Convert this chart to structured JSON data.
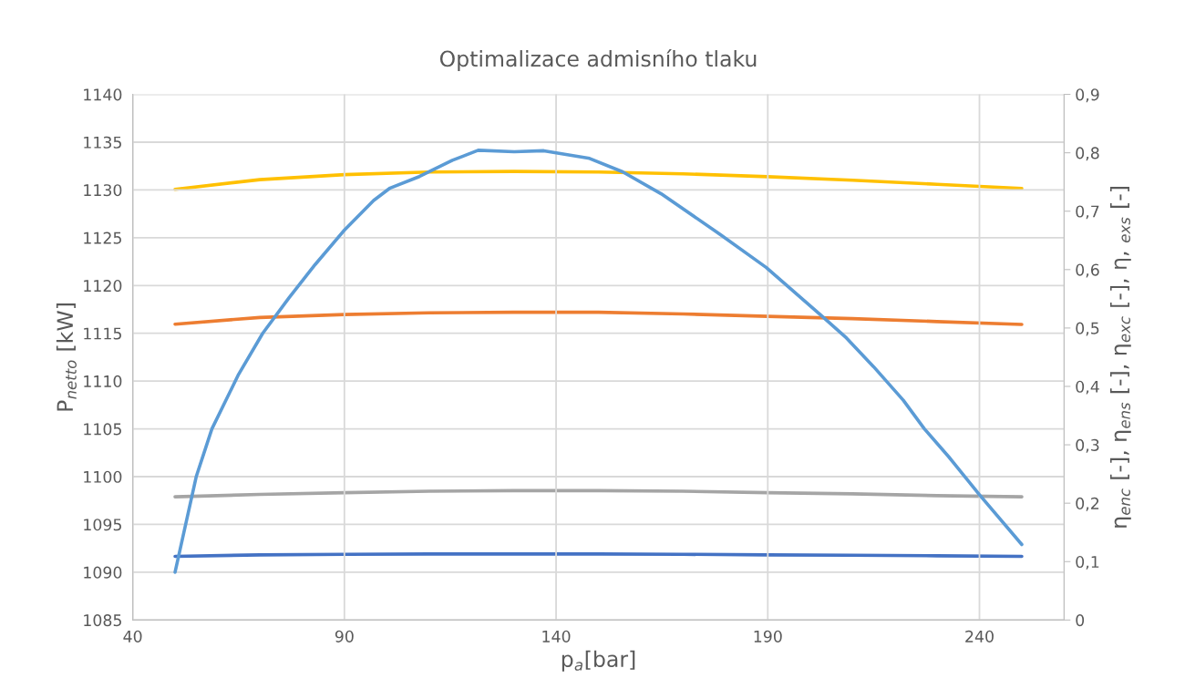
{
  "chart_data": {
    "type": "line",
    "title": "Optimalizace admisního tlaku",
    "xlabel": "p$_{a}$[bar]",
    "ylabel": "P$_{netto}$ [kW]",
    "y2label": "η$_{enc}$ [-], η$_{ens}$ [-], η$_{exc}$ [-], η, $_{exs}$ [-]",
    "xlim": [
      40,
      260
    ],
    "xticks": [
      40,
      90,
      140,
      190,
      240
    ],
    "ylim": [
      1085,
      1140
    ],
    "yticks": [
      1085,
      1090,
      1095,
      1100,
      1105,
      1110,
      1115,
      1120,
      1125,
      1130,
      1135,
      1140
    ],
    "y2lim": [
      0,
      0.9
    ],
    "y2ticks": [
      0,
      {
        "value": 0.1,
        "label": "0,1"
      },
      {
        "value": 0.2,
        "label": "0,2"
      },
      {
        "value": 0.3,
        "label": "0,3"
      },
      {
        "value": 0.4,
        "label": "0,4"
      },
      {
        "value": 0.5,
        "label": "0,5"
      },
      {
        "value": 0.6,
        "label": "0,6"
      },
      {
        "value": 0.7,
        "label": "0,7"
      },
      {
        "value": 0.8,
        "label": "0,8"
      },
      {
        "value": 0.9,
        "label": "0,9"
      }
    ],
    "grid": true,
    "legend": false,
    "marker": "none",
    "line_style": "solid",
    "series": [
      {
        "color": "#5b9bd5",
        "x": [
          50,
          55,
          58.7,
          65,
          70.7,
          76.9,
          83.1,
          90,
          96.9,
          100.8,
          107.7,
          115.5,
          121.6,
          130.1,
          137.1,
          147.9,
          155.7,
          164.8,
          178.9,
          189.6,
          202.8,
          208.6,
          215,
          222,
          227,
          232.7,
          240,
          250
        ],
        "values": [
          1090,
          1100,
          1105,
          1110.7,
          1115,
          1118.7,
          1122.2,
          1125.8,
          1128.9,
          1130.2,
          1131.4,
          1133.1,
          1134.15,
          1134,
          1134.1,
          1133.3,
          1131.9,
          1129.6,
          1125.3,
          1121.9,
          1116.8,
          1114.5,
          1111.5,
          1108,
          1105,
          1102.1,
          1098.1,
          1092.9
        ]
      },
      {
        "color": "#ed7d31",
        "axis": "y2",
        "x": [
          50,
          70,
          90,
          110,
          130,
          150,
          170,
          190,
          210,
          230,
          250
        ],
        "values": [
          0.5065,
          0.518,
          0.523,
          0.526,
          0.527,
          0.527,
          0.524,
          0.52,
          0.516,
          0.511,
          0.506
        ]
      },
      {
        "color": "#a5a5a5",
        "axis": "y2",
        "x": [
          50,
          70,
          90,
          110,
          130,
          150,
          170,
          190,
          210,
          230,
          250
        ],
        "values": [
          0.211,
          0.215,
          0.218,
          0.2205,
          0.2215,
          0.2215,
          0.2205,
          0.218,
          0.216,
          0.213,
          0.211
        ]
      },
      {
        "color": "#ffc000",
        "axis": "y2",
        "x": [
          50,
          70,
          90,
          110,
          130,
          150,
          170,
          190,
          210,
          230,
          250
        ],
        "values": [
          0.7375,
          0.754,
          0.7625,
          0.767,
          0.768,
          0.767,
          0.764,
          0.759,
          0.753,
          0.746,
          0.739
        ]
      },
      {
        "color": "#4472c4",
        "axis": "y2",
        "x": [
          50,
          70,
          90,
          110,
          130,
          150,
          170,
          190,
          210,
          230,
          250
        ],
        "values": [
          0.109,
          0.1115,
          0.1125,
          0.113,
          0.113,
          0.113,
          0.1125,
          0.1115,
          0.111,
          0.11,
          0.109
        ]
      }
    ]
  }
}
